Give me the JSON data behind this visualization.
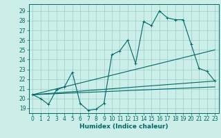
{
  "xlabel": "Humidex (Indice chaleur)",
  "bg_color": "#cceee8",
  "grid_color": "#99ccc8",
  "line_color": "#006666",
  "xlim": [
    -0.5,
    23.5
  ],
  "ylim": [
    18.5,
    29.7
  ],
  "xticks": [
    0,
    1,
    2,
    3,
    4,
    5,
    6,
    7,
    8,
    9,
    10,
    11,
    12,
    13,
    14,
    15,
    16,
    17,
    18,
    19,
    20,
    21,
    22,
    23
  ],
  "yticks": [
    19,
    20,
    21,
    22,
    23,
    24,
    25,
    26,
    27,
    28,
    29
  ],
  "main_x": [
    0,
    1,
    2,
    3,
    4,
    5,
    6,
    7,
    8,
    9,
    10,
    11,
    12,
    13,
    14,
    15,
    16,
    17,
    18,
    19,
    20,
    21,
    22,
    23
  ],
  "main_y": [
    20.4,
    20.0,
    19.4,
    20.9,
    21.2,
    22.7,
    19.5,
    18.8,
    18.9,
    19.5,
    24.5,
    24.9,
    26.0,
    23.6,
    27.9,
    27.5,
    29.0,
    28.3,
    28.1,
    28.1,
    25.6,
    23.1,
    22.8,
    21.8
  ],
  "line1_x": [
    0,
    23
  ],
  "line1_y": [
    20.4,
    25.0
  ],
  "line2_x": [
    0,
    23
  ],
  "line2_y": [
    20.4,
    21.8
  ],
  "line3_x": [
    0,
    23
  ],
  "line3_y": [
    20.4,
    21.2
  ],
  "xlabel_fontsize": 6.5,
  "tick_fontsize": 5.5,
  "marker_size": 2.5,
  "line_width": 0.8
}
